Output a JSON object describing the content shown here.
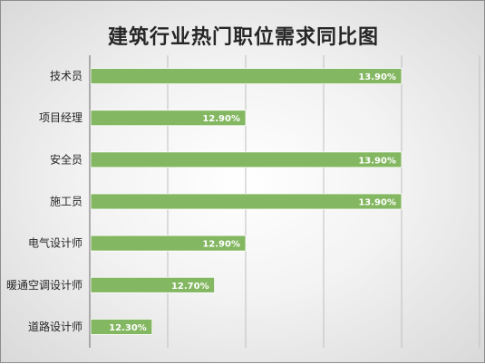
{
  "chart_data": {
    "type": "bar",
    "orientation": "horizontal",
    "title": "建筑行业热门职位需求同比图",
    "categories": [
      "技术员",
      "项目经理",
      "安全员",
      "施工员",
      "电气设计师",
      "暖通空调设计师",
      "道路设计师"
    ],
    "values": [
      13.9,
      12.9,
      13.9,
      13.9,
      12.9,
      12.7,
      12.3
    ],
    "data_labels": [
      "13.90%",
      "12.90%",
      "13.90%",
      "13.90%",
      "12.90%",
      "12.70%",
      "12.30%"
    ],
    "xlim": [
      11.9,
      14.4
    ],
    "grid": true,
    "bar_color": "#84b761",
    "legend": "none"
  }
}
